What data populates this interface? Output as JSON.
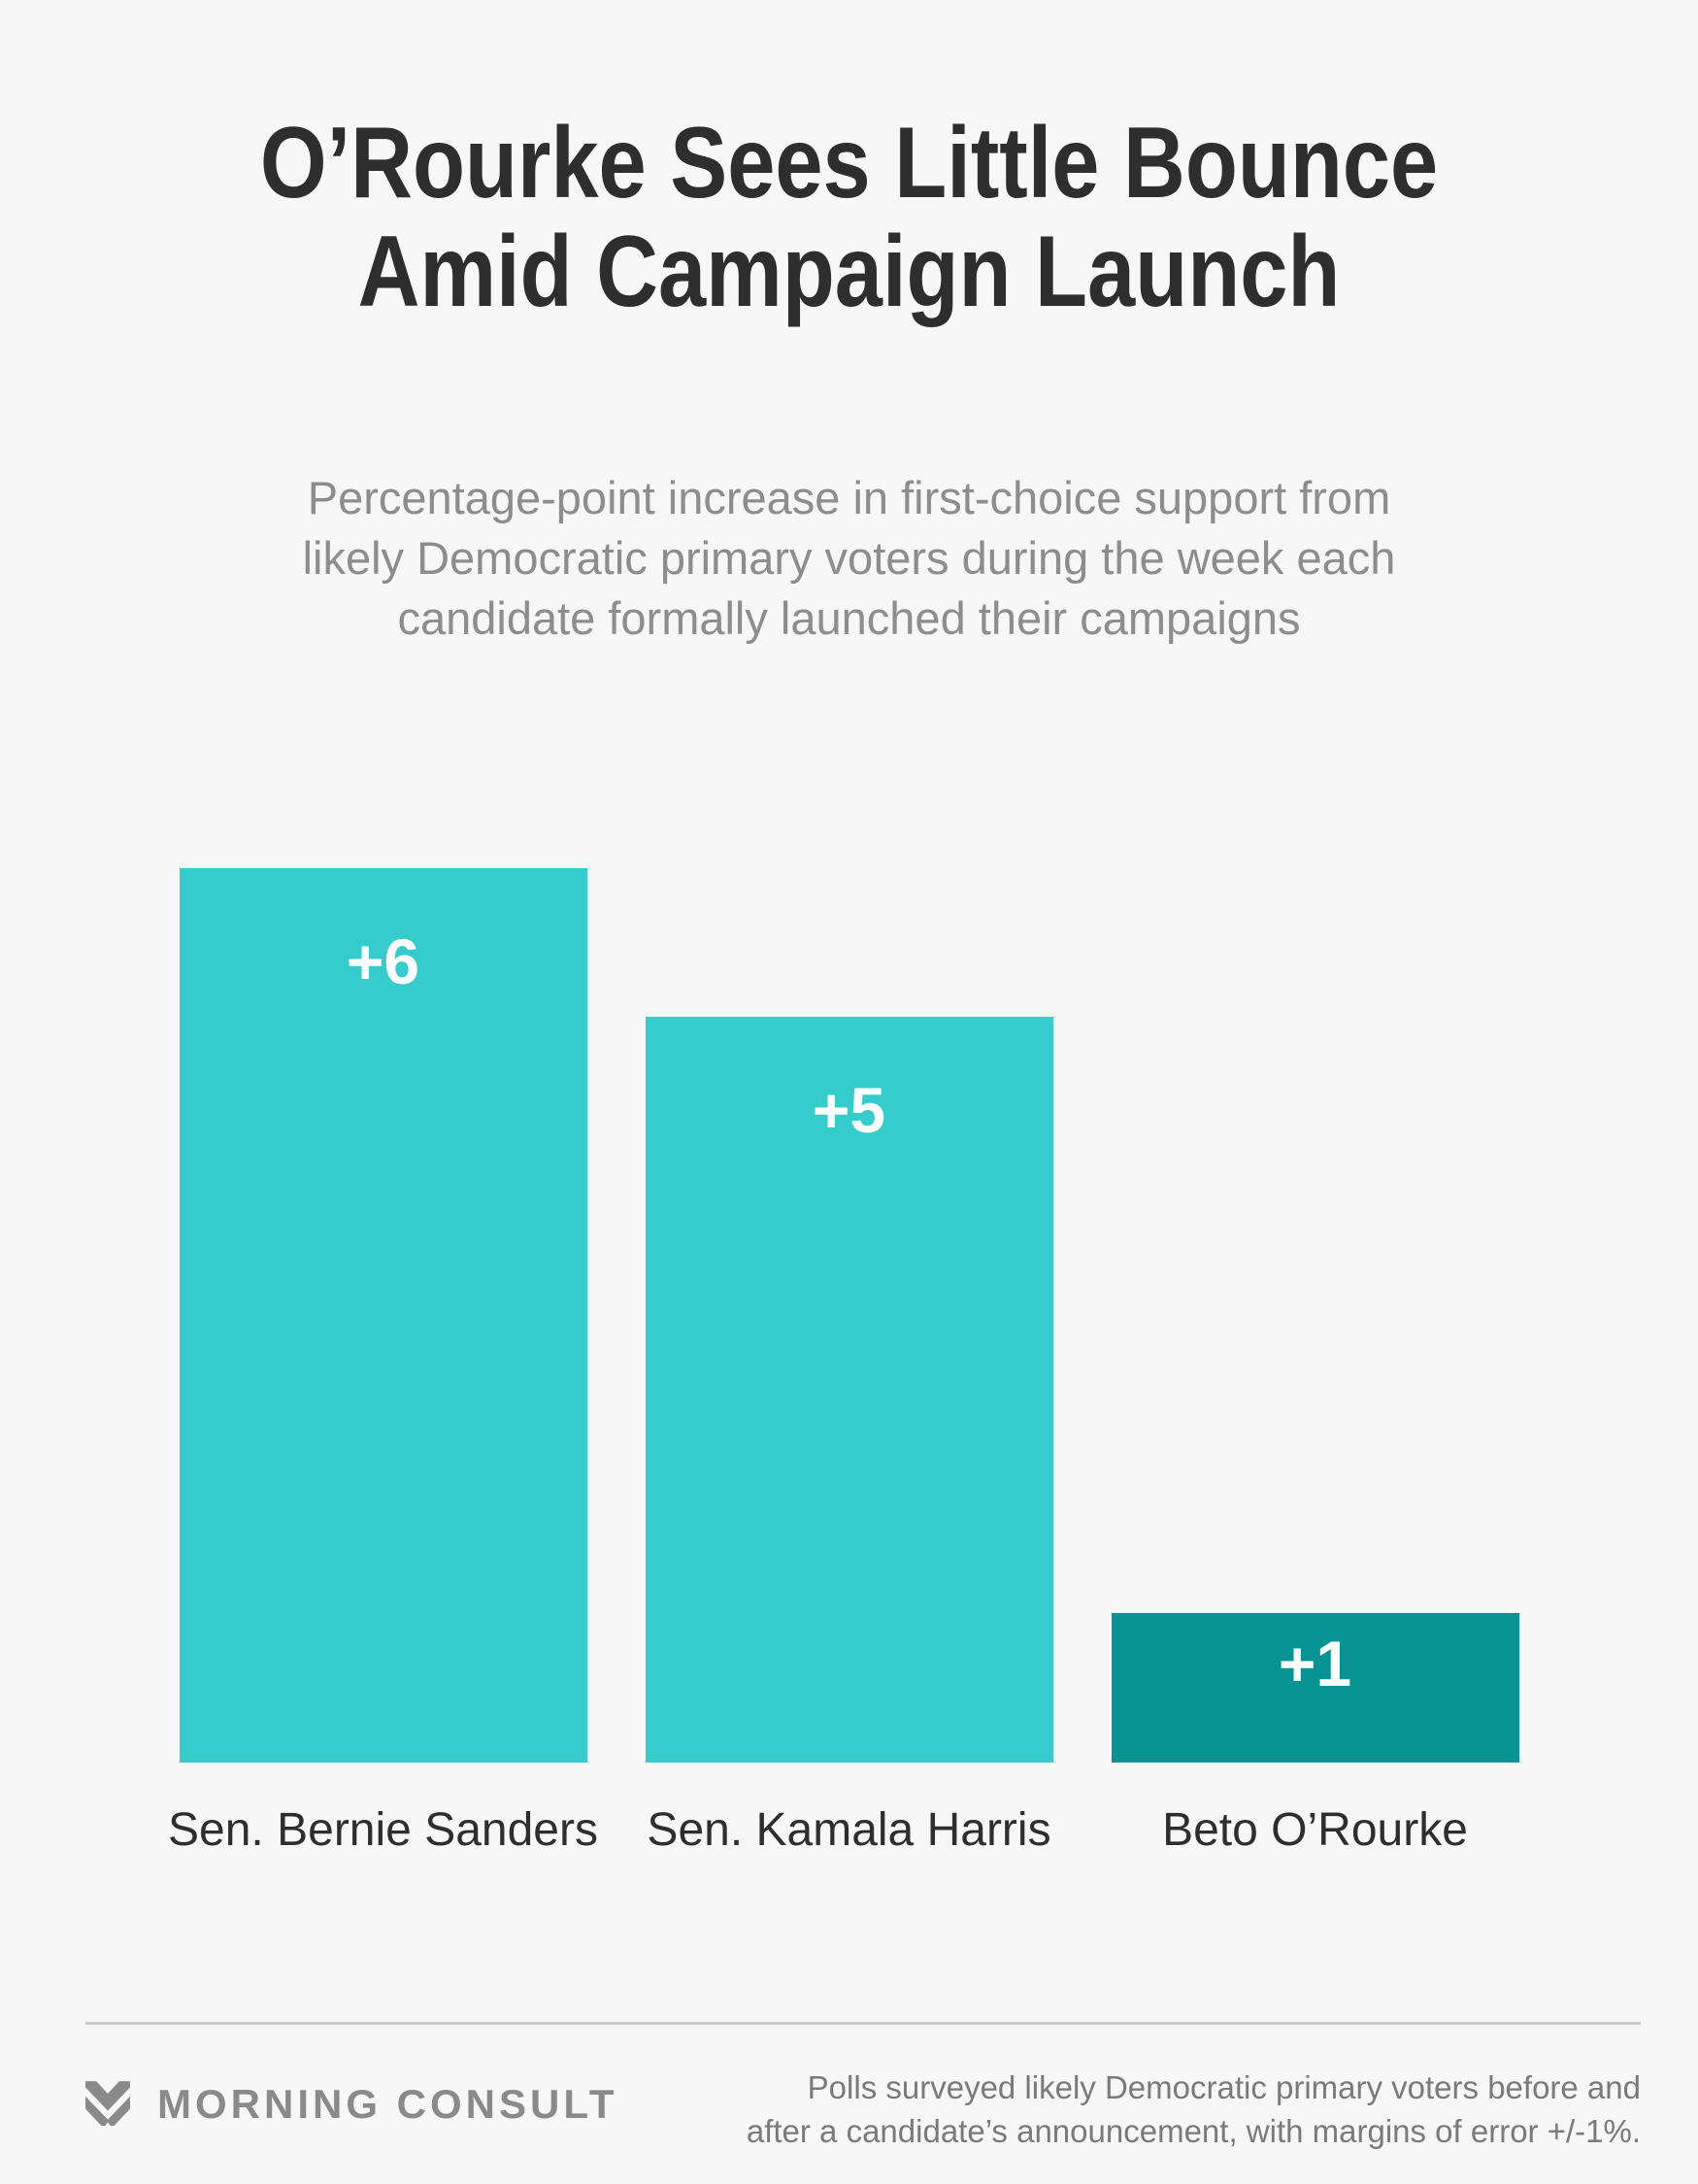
{
  "page": {
    "background_color": "#f7f7f7"
  },
  "header": {
    "title_lines": [
      "O’Rourke Sees Little Bounce",
      "Amid Campaign Launch"
    ],
    "subtitle_lines": [
      "Percentage-point increase in first-choice support from",
      "likely Democratic primary voters during the week each",
      "candidate formally launched their campaigns"
    ]
  },
  "chart_data": {
    "type": "bar",
    "title": "O’Rourke Sees Little Bounce Amid Campaign Launch",
    "subtitle": "Percentage-point increase in first-choice support from likely Democratic primary voters during the week each candidate formally launched their campaigns",
    "categories": [
      "Sen. Bernie Sanders",
      "Sen. Kamala Harris",
      "Beto O’Rourke"
    ],
    "values": [
      6,
      5,
      1
    ],
    "value_labels": [
      "+6",
      "+5",
      "+1"
    ],
    "bar_colors": [
      "#35cccc",
      "#35cccc",
      "#069394"
    ],
    "value_label_color": "#ffffff",
    "xlabel": "",
    "ylabel": "",
    "ylim": [
      0,
      6
    ],
    "grid": false,
    "legend": false
  },
  "footer": {
    "brand_name": "MORNING CONSULT",
    "note_lines": [
      "Polls surveyed likely Democratic primary voters before and",
      "after a candidate’s announcement, with margins of error +/-1%."
    ]
  },
  "colors": {
    "title": "#2e2e2e",
    "subtitle": "#8d8d8d",
    "category_label": "#2e2e2e",
    "accent_teal": "#35cccc",
    "accent_teal_dark": "#069394",
    "footer_text": "#7a7a7a",
    "brand_gray": "#8a8a8a",
    "divider": "#cbcbcb"
  }
}
